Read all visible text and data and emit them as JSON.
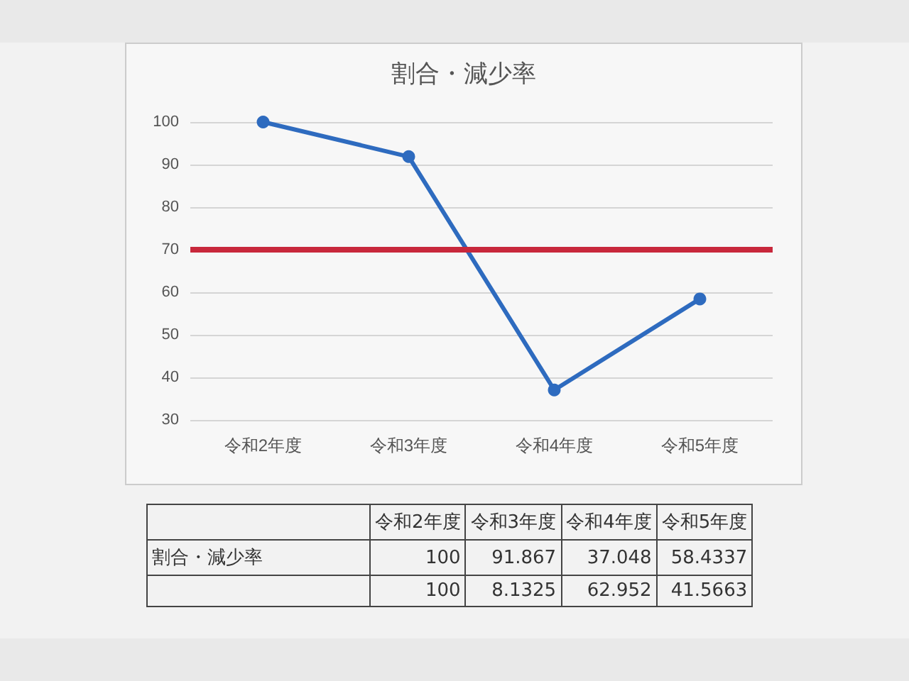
{
  "chart_data": {
    "type": "line",
    "title": "割合・減少率",
    "categories": [
      "令和2年度",
      "令和3年度",
      "令和4年度",
      "令和5年度"
    ],
    "series": [
      {
        "name": "割合・減少率",
        "color": "#2e6bbf",
        "values": [
          100,
          91.867,
          37.048,
          58.4337
        ]
      }
    ],
    "ref_lines": [
      {
        "axis": "y",
        "value": 70,
        "color": "#c8283c"
      }
    ],
    "annotations": [
      "100",
      "91.867",
      "37.048",
      "58.4337",
      "100",
      "8.1325",
      "62.952",
      "41.5663"
    ],
    "ylim": [
      30,
      100
    ],
    "yticks": [
      30,
      40,
      50,
      60,
      70,
      80,
      90,
      100
    ],
    "grid": "y",
    "marker": "circle",
    "line_style": "solid",
    "legend": false
  }
}
